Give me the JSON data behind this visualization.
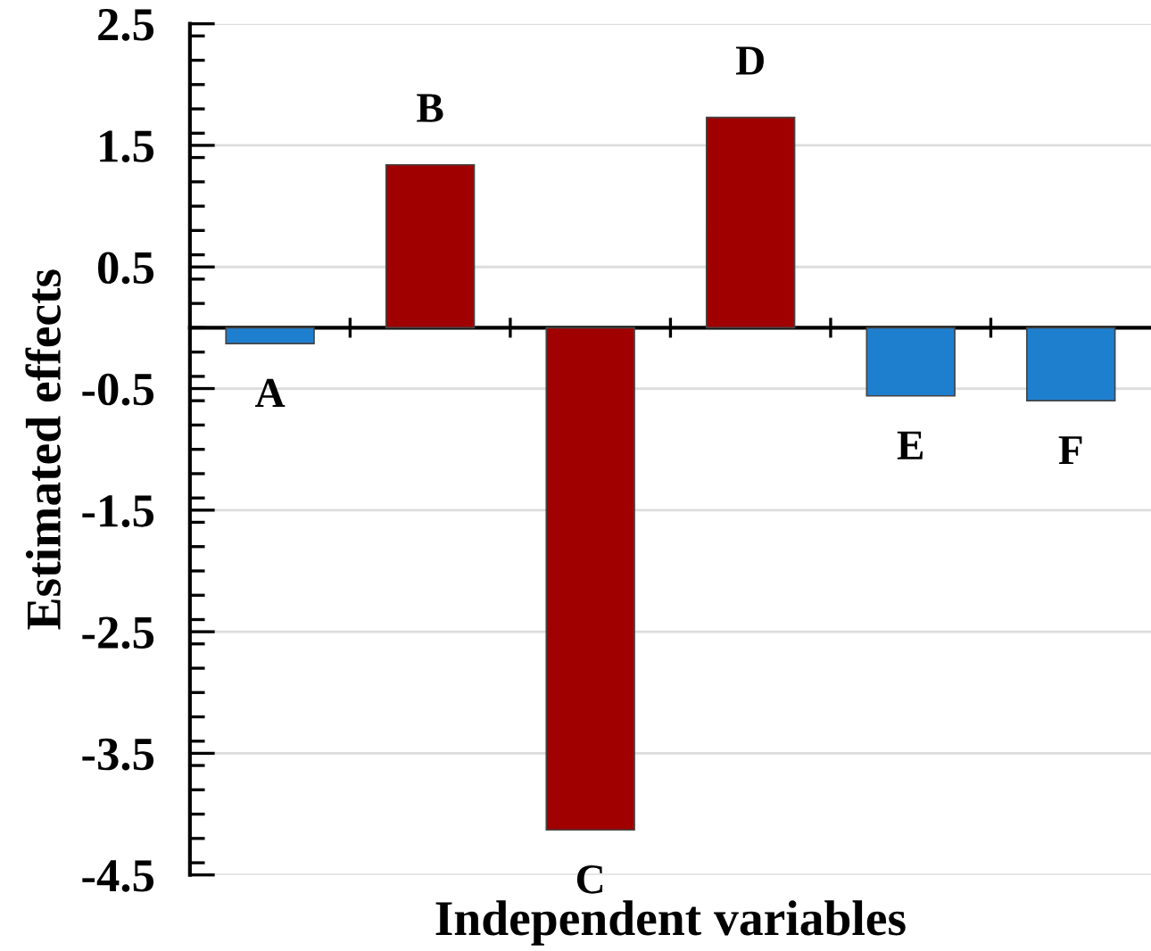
{
  "chart_data": {
    "type": "bar",
    "xlabel": "Independent variables",
    "ylabel": "Estimated effects",
    "categories": [
      "A",
      "B",
      "C",
      "D",
      "E",
      "F"
    ],
    "values": [
      -0.13,
      1.34,
      -4.13,
      1.73,
      -0.56,
      -0.6
    ],
    "colors": [
      "#1f7fcf",
      "#a00000",
      "#a00000",
      "#a00000",
      "#1f7fcf",
      "#1f7fcf"
    ],
    "ylim": [
      -4.5,
      2.5
    ],
    "yticks": [
      2.5,
      1.5,
      0.5,
      -0.5,
      -1.5,
      -2.5,
      -3.5,
      -4.5
    ],
    "grid": "y",
    "tick_labels": "y"
  }
}
